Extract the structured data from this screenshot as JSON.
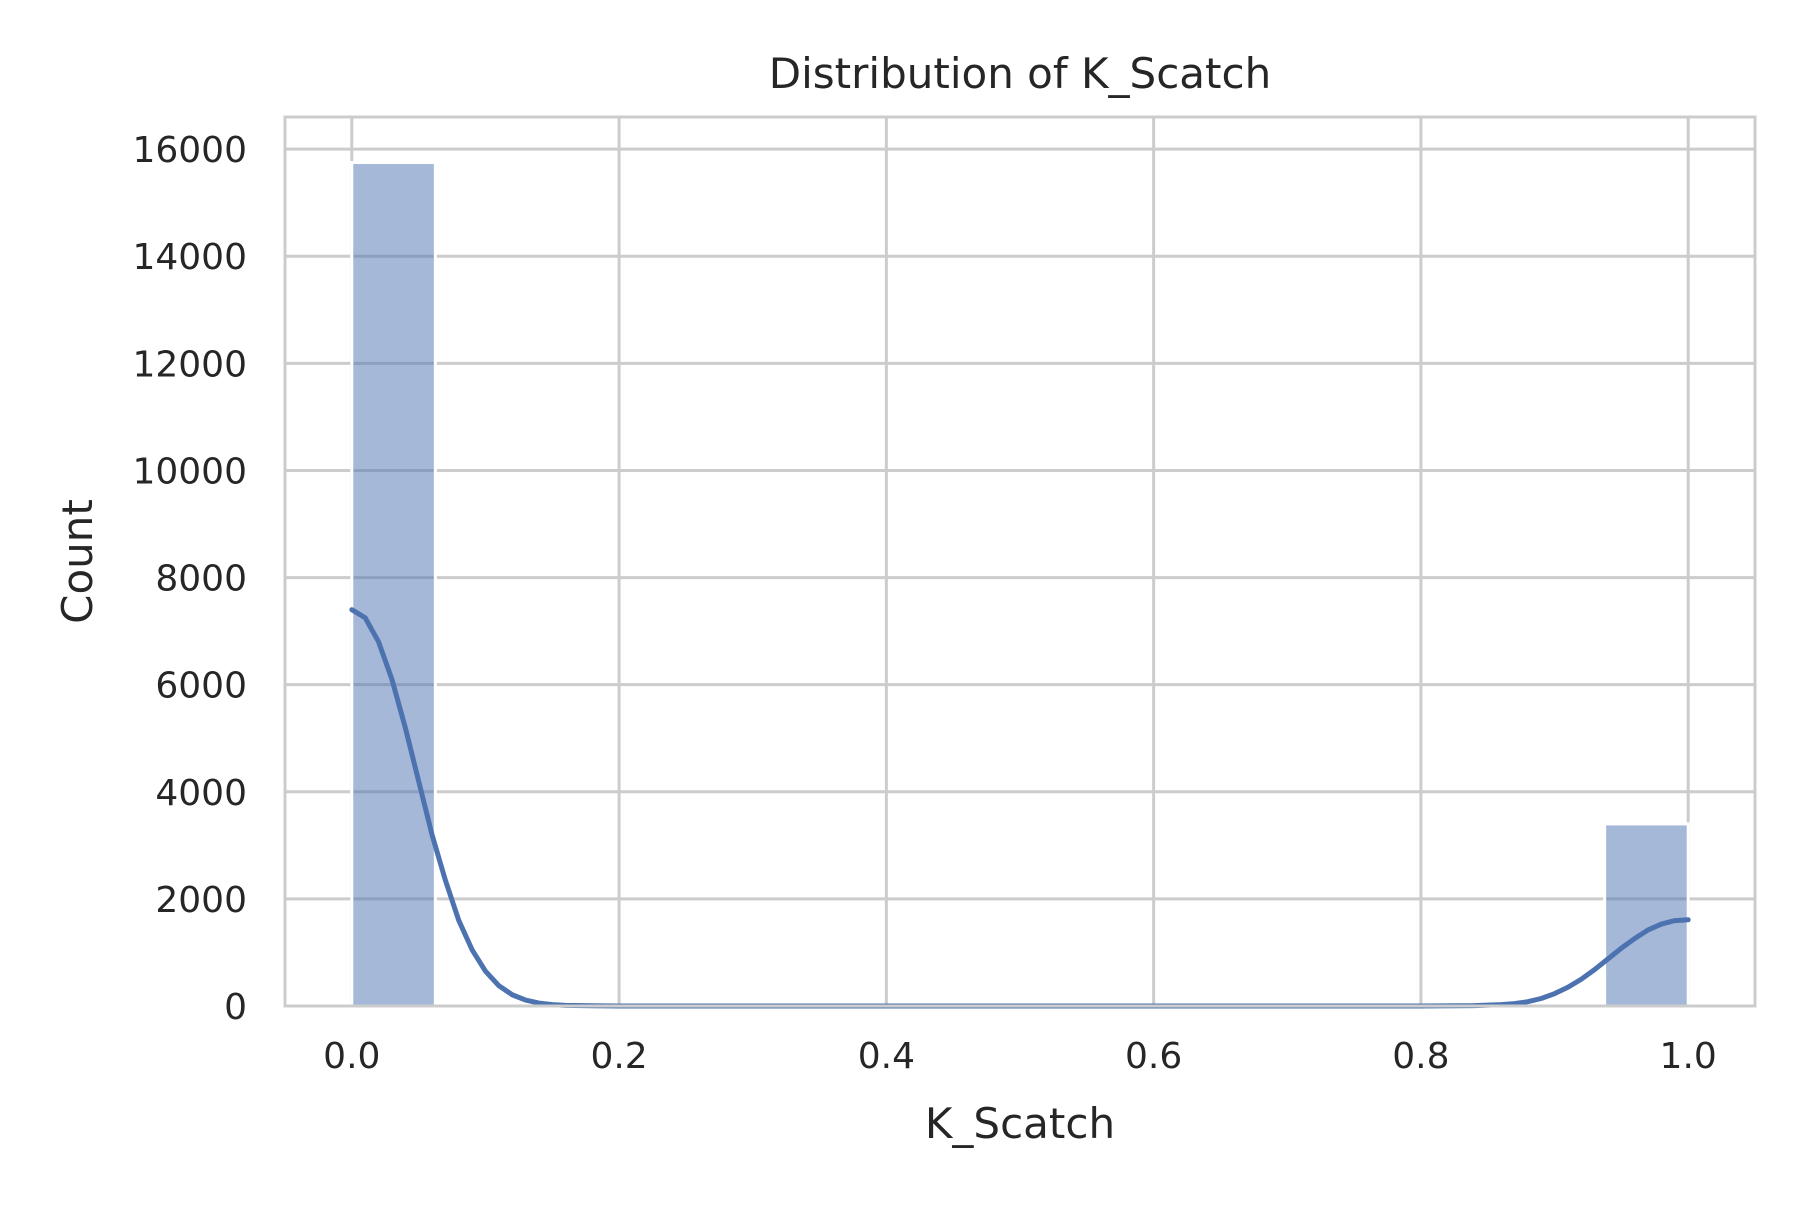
{
  "chart_data": {
    "type": "histogram",
    "title": "Distribution of K_Scatch",
    "xlabel": "K_Scatch",
    "ylabel": "Count",
    "xlim": [
      -0.05,
      1.05
    ],
    "ylim": [
      0,
      16600
    ],
    "xticks": [
      0.0,
      0.2,
      0.4,
      0.6,
      0.8,
      1.0
    ],
    "xtick_labels": [
      "0.0",
      "0.2",
      "0.4",
      "0.6",
      "0.8",
      "1.0"
    ],
    "yticks": [
      0,
      2000,
      4000,
      6000,
      8000,
      10000,
      12000,
      14000,
      16000
    ],
    "ytick_labels": [
      "0",
      "2000",
      "4000",
      "6000",
      "8000",
      "10000",
      "12000",
      "14000",
      "16000"
    ],
    "grid": true,
    "bar_color": "#4c72b0",
    "bar_opacity": 0.5,
    "line_color": "#4c72b0",
    "bins": [
      {
        "x0": 0.0,
        "x1": 0.0625,
        "count": 15750
      },
      {
        "x0": 0.9375,
        "x1": 1.0,
        "count": 3400
      }
    ],
    "kde": {
      "x": [
        0.0,
        0.01,
        0.02,
        0.03,
        0.04,
        0.05,
        0.06,
        0.07,
        0.08,
        0.09,
        0.1,
        0.11,
        0.12,
        0.13,
        0.14,
        0.15,
        0.16,
        0.18,
        0.2,
        0.3,
        0.4,
        0.5,
        0.6,
        0.7,
        0.8,
        0.84,
        0.86,
        0.87,
        0.88,
        0.89,
        0.9,
        0.91,
        0.92,
        0.93,
        0.94,
        0.95,
        0.96,
        0.97,
        0.98,
        0.99,
        1.0
      ],
      "y": [
        7400,
        7250,
        6800,
        6100,
        5200,
        4200,
        3200,
        2350,
        1600,
        1050,
        650,
        380,
        210,
        110,
        55,
        25,
        12,
        4,
        1,
        0,
        0,
        0,
        0,
        0,
        0,
        8,
        25,
        45,
        80,
        140,
        230,
        350,
        500,
        680,
        880,
        1080,
        1260,
        1420,
        1530,
        1595,
        1610
      ]
    }
  }
}
